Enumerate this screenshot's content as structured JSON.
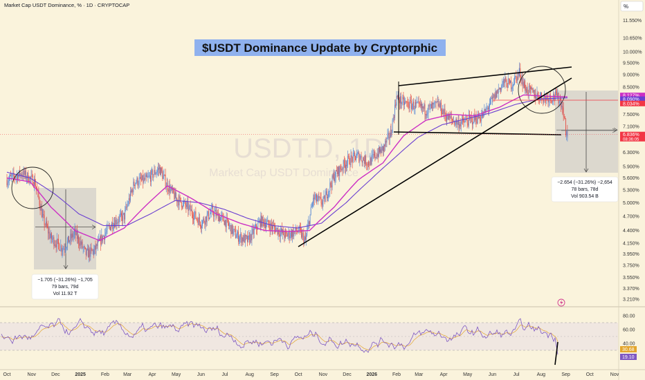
{
  "header": {
    "title": "Market Cap USDT Dominance, % · 1D · CRYPTOCAP",
    "unit_button": "%"
  },
  "watermark": {
    "symbol": "USDT.D, 1D",
    "name": "Market Cap USDT Dominance"
  },
  "headline": "$USDT Dominance Update by Cryptorphic",
  "colors": {
    "background": "#faf3dc",
    "price_up": "#5b8ad6",
    "price_down": "#e5534b",
    "ma_fast": "#cc2fc4",
    "ma_slow": "#6a3ed1",
    "rsi": "#7e57c2",
    "rsi_signal": "#e3a52c",
    "headline_bg": "#8fb1ee",
    "last_price_badge": "#f23645"
  },
  "price_axis": {
    "ticks": [
      "11.550%",
      "10.650%",
      "10.000%",
      "9.500%",
      "9.000%",
      "8.500%",
      "7.900%",
      "7.500%",
      "7.100%",
      "6.700%",
      "6.300%",
      "5.900%",
      "5.600%",
      "5.300%",
      "5.000%",
      "4.700%",
      "4.400%",
      "4.150%",
      "3.950%",
      "3.750%",
      "3.550%",
      "3.370%",
      "3.210%"
    ],
    "badges": [
      {
        "label": "8.127%",
        "color": "#cc2fc4",
        "value": 8.127
      },
      {
        "label": "8.090%",
        "color": "#6a3ed1",
        "value": 8.09
      },
      {
        "label": "8.034%",
        "color": "#f23645",
        "value": 8.034
      },
      {
        "label": "6.836%",
        "sub": "08:36:05",
        "color": "#f23645",
        "value": 6.836
      }
    ]
  },
  "rsi_axis": {
    "ticks": [
      "80.00",
      "60.00",
      "40.00"
    ],
    "badges": [
      {
        "label": "30.68",
        "color": "#e3a52c",
        "value": 30.68
      },
      {
        "label": "19.10",
        "color": "#7e57c2",
        "value": 19.1
      }
    ]
  },
  "time_axis": {
    "labels": [
      "Oct",
      "Nov",
      "Dec",
      "2025",
      "Feb",
      "Mar",
      "Apr",
      "May",
      "Jun",
      "Jul",
      "Aug",
      "Sep",
      "Oct",
      "Nov",
      "Dec",
      "2026",
      "Feb",
      "Mar",
      "Apr",
      "May",
      "Jun",
      "Jul",
      "Aug",
      "Sep",
      "Oct",
      "Nov"
    ],
    "bold": [
      "2025",
      "2026"
    ]
  },
  "measure_boxes": [
    {
      "line1": "−1.705 (−31.26%) −1,705",
      "line2": "79 bars, 79d",
      "line3": "Vol 11.92 T"
    },
    {
      "line1": "−2.654 (−31.26%) −2,654",
      "line2": "78 bars, 78d",
      "line3": "Vol 903.54 B"
    }
  ],
  "chart_data": {
    "type": "line",
    "title": "Market Cap USDT Dominance, % · 1D · CRYPTOCAP",
    "ylabel": "%",
    "ylim": [
      3.2,
      11.6
    ],
    "scale": "log",
    "x_range": [
      "2024-10",
      "2026-11"
    ],
    "series": [
      {
        "role": "price",
        "anchors": [
          [
            "2024-10-01",
            5.55
          ],
          [
            "2024-10-20",
            5.72
          ],
          [
            "2024-11-05",
            5.5
          ],
          [
            "2024-11-15",
            4.65
          ],
          [
            "2024-11-25",
            4.25
          ],
          [
            "2024-12-10",
            4.05
          ],
          [
            "2024-12-25",
            4.35
          ],
          [
            "2025-01-08",
            3.95
          ],
          [
            "2025-01-18",
            4.0
          ],
          [
            "2025-01-28",
            4.25
          ],
          [
            "2025-02-10",
            4.55
          ],
          [
            "2025-02-25",
            4.7
          ],
          [
            "2025-03-10",
            5.5
          ],
          [
            "2025-03-25",
            5.55
          ],
          [
            "2025-04-10",
            5.85
          ],
          [
            "2025-04-20",
            5.4
          ],
          [
            "2025-05-01",
            5.1
          ],
          [
            "2025-05-15",
            4.9
          ],
          [
            "2025-06-01",
            4.55
          ],
          [
            "2025-06-15",
            4.8
          ],
          [
            "2025-07-01",
            4.6
          ],
          [
            "2025-07-15",
            4.3
          ],
          [
            "2025-07-30",
            4.2
          ],
          [
            "2025-08-15",
            4.6
          ],
          [
            "2025-09-01",
            4.45
          ],
          [
            "2025-09-15",
            4.3
          ],
          [
            "2025-10-01",
            4.4
          ],
          [
            "2025-10-10",
            4.2
          ],
          [
            "2025-10-20",
            5.1
          ],
          [
            "2025-11-01",
            5.0
          ],
          [
            "2025-11-15",
            5.65
          ],
          [
            "2025-12-01",
            6.05
          ],
          [
            "2025-12-15",
            6.2
          ],
          [
            "2025-12-28",
            6.0
          ],
          [
            "2026-01-05",
            6.2
          ],
          [
            "2026-01-15",
            6.4
          ],
          [
            "2026-01-25",
            6.9
          ],
          [
            "2026-02-01",
            8.1
          ],
          [
            "2026-02-10",
            7.9
          ],
          [
            "2026-02-25",
            7.8
          ],
          [
            "2026-03-10",
            7.65
          ],
          [
            "2026-03-25",
            7.85
          ],
          [
            "2026-04-05",
            7.4
          ],
          [
            "2026-04-20",
            7.2
          ],
          [
            "2026-05-05",
            7.3
          ],
          [
            "2026-05-20",
            7.45
          ],
          [
            "2026-06-01",
            8.0
          ],
          [
            "2026-06-15",
            8.7
          ],
          [
            "2026-06-25",
            8.6
          ],
          [
            "2026-07-05",
            9.1
          ],
          [
            "2026-07-12",
            8.45
          ],
          [
            "2026-07-25",
            8.2
          ],
          [
            "2026-08-05",
            8.1
          ],
          [
            "2026-08-18",
            8.15
          ],
          [
            "2026-08-25",
            8.03
          ],
          [
            "2026-08-29",
            7.6
          ],
          [
            "2026-09-01",
            6.95
          ],
          [
            "2026-09-03",
            6.84
          ]
        ]
      },
      {
        "role": "ma_fast",
        "anchors": [
          [
            "2024-10-01",
            5.6
          ],
          [
            "2024-10-30",
            5.5
          ],
          [
            "2024-11-25",
            4.9
          ],
          [
            "2024-12-25",
            4.4
          ],
          [
            "2025-01-25",
            4.2
          ],
          [
            "2025-02-25",
            4.45
          ],
          [
            "2025-03-25",
            4.95
          ],
          [
            "2025-04-20",
            5.4
          ],
          [
            "2025-05-20",
            5.1
          ],
          [
            "2025-06-20",
            4.75
          ],
          [
            "2025-07-20",
            4.55
          ],
          [
            "2025-08-20",
            4.4
          ],
          [
            "2025-09-20",
            4.38
          ],
          [
            "2025-10-15",
            4.4
          ],
          [
            "2025-11-15",
            4.9
          ],
          [
            "2025-12-15",
            5.55
          ],
          [
            "2026-01-15",
            6.0
          ],
          [
            "2026-02-10",
            6.8
          ],
          [
            "2026-03-10",
            7.3
          ],
          [
            "2026-04-10",
            7.5
          ],
          [
            "2026-05-10",
            7.45
          ],
          [
            "2026-06-10",
            7.75
          ],
          [
            "2026-07-10",
            8.2
          ],
          [
            "2026-08-10",
            8.15
          ],
          [
            "2026-09-03",
            8.127
          ]
        ]
      },
      {
        "role": "ma_slow",
        "anchors": [
          [
            "2024-10-01",
            5.75
          ],
          [
            "2024-10-30",
            5.6
          ],
          [
            "2024-11-30",
            5.2
          ],
          [
            "2024-12-30",
            4.75
          ],
          [
            "2025-01-30",
            4.5
          ],
          [
            "2025-02-28",
            4.5
          ],
          [
            "2025-03-30",
            4.75
          ],
          [
            "2025-04-30",
            5.05
          ],
          [
            "2025-05-30",
            5.0
          ],
          [
            "2025-06-30",
            4.85
          ],
          [
            "2025-07-30",
            4.65
          ],
          [
            "2025-08-30",
            4.5
          ],
          [
            "2025-09-30",
            4.45
          ],
          [
            "2025-10-30",
            4.55
          ],
          [
            "2025-11-30",
            5.0
          ],
          [
            "2025-12-30",
            5.55
          ],
          [
            "2026-01-30",
            6.15
          ],
          [
            "2026-02-28",
            6.75
          ],
          [
            "2026-03-30",
            7.15
          ],
          [
            "2026-04-30",
            7.35
          ],
          [
            "2026-05-30",
            7.55
          ],
          [
            "2026-06-30",
            7.85
          ],
          [
            "2026-07-30",
            8.05
          ],
          [
            "2026-09-03",
            8.09
          ]
        ]
      }
    ],
    "rsi": {
      "ylim": [
        15,
        85
      ],
      "levels": [
        70,
        30
      ],
      "last": 19.1,
      "signal_last": 30.68
    }
  }
}
